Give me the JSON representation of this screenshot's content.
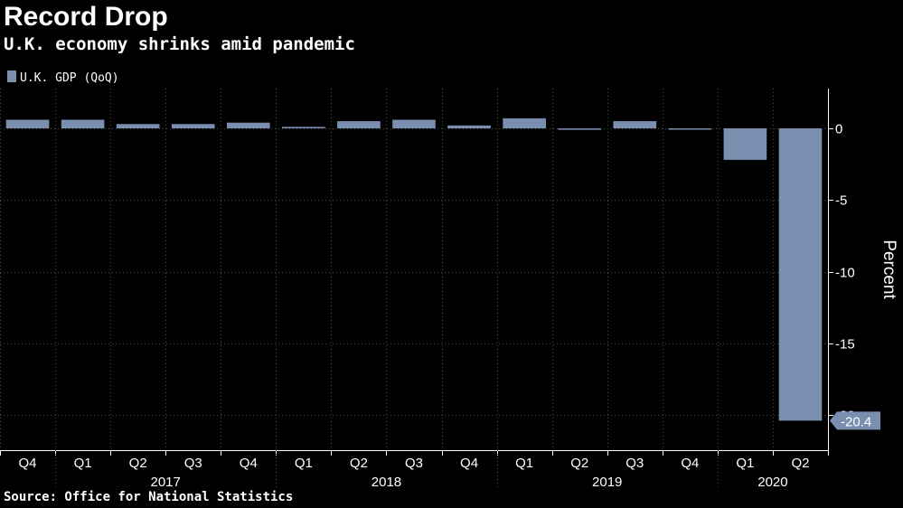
{
  "title": "Record Drop",
  "subtitle": "U.K. economy shrinks amid pandemic",
  "source": "Source: Office for National Statistics",
  "colors": {
    "background": "#000000",
    "bar": "#7a8fb0",
    "axis": "#ffffff",
    "grid": "#4a4a4a",
    "callout": "#7a8fb0"
  },
  "chart_data": {
    "type": "bar",
    "series": [
      {
        "name": "U.K. GDP (QoQ)",
        "values": [
          0.6,
          0.6,
          0.3,
          0.3,
          0.4,
          0.1,
          0.5,
          0.6,
          0.2,
          0.7,
          -0.1,
          0.5,
          -0.05,
          -2.2,
          -20.4
        ]
      }
    ],
    "categories": [
      "Q4",
      "Q1",
      "Q2",
      "Q3",
      "Q4",
      "Q1",
      "Q2",
      "Q3",
      "Q4",
      "Q1",
      "Q2",
      "Q3",
      "Q4",
      "Q1",
      "Q2"
    ],
    "year_groups": [
      {
        "label": "2017",
        "start": 1,
        "end": 4
      },
      {
        "label": "2018",
        "start": 5,
        "end": 8
      },
      {
        "label": "2019",
        "start": 9,
        "end": 12
      },
      {
        "label": "2020",
        "start": 13,
        "end": 14
      }
    ],
    "year_dividers_after": [
      0,
      4,
      8,
      12
    ],
    "ylabel": "Percent",
    "ylim": [
      -21.5,
      2.8
    ],
    "yticks": [
      0,
      -5,
      -10,
      -15,
      -20
    ],
    "ytick_labels": [
      "0",
      "-5",
      "-10",
      "-15",
      "-20"
    ],
    "grid": true,
    "legend": "top-left",
    "callout": {
      "index": 14,
      "label": "-20.4"
    }
  }
}
